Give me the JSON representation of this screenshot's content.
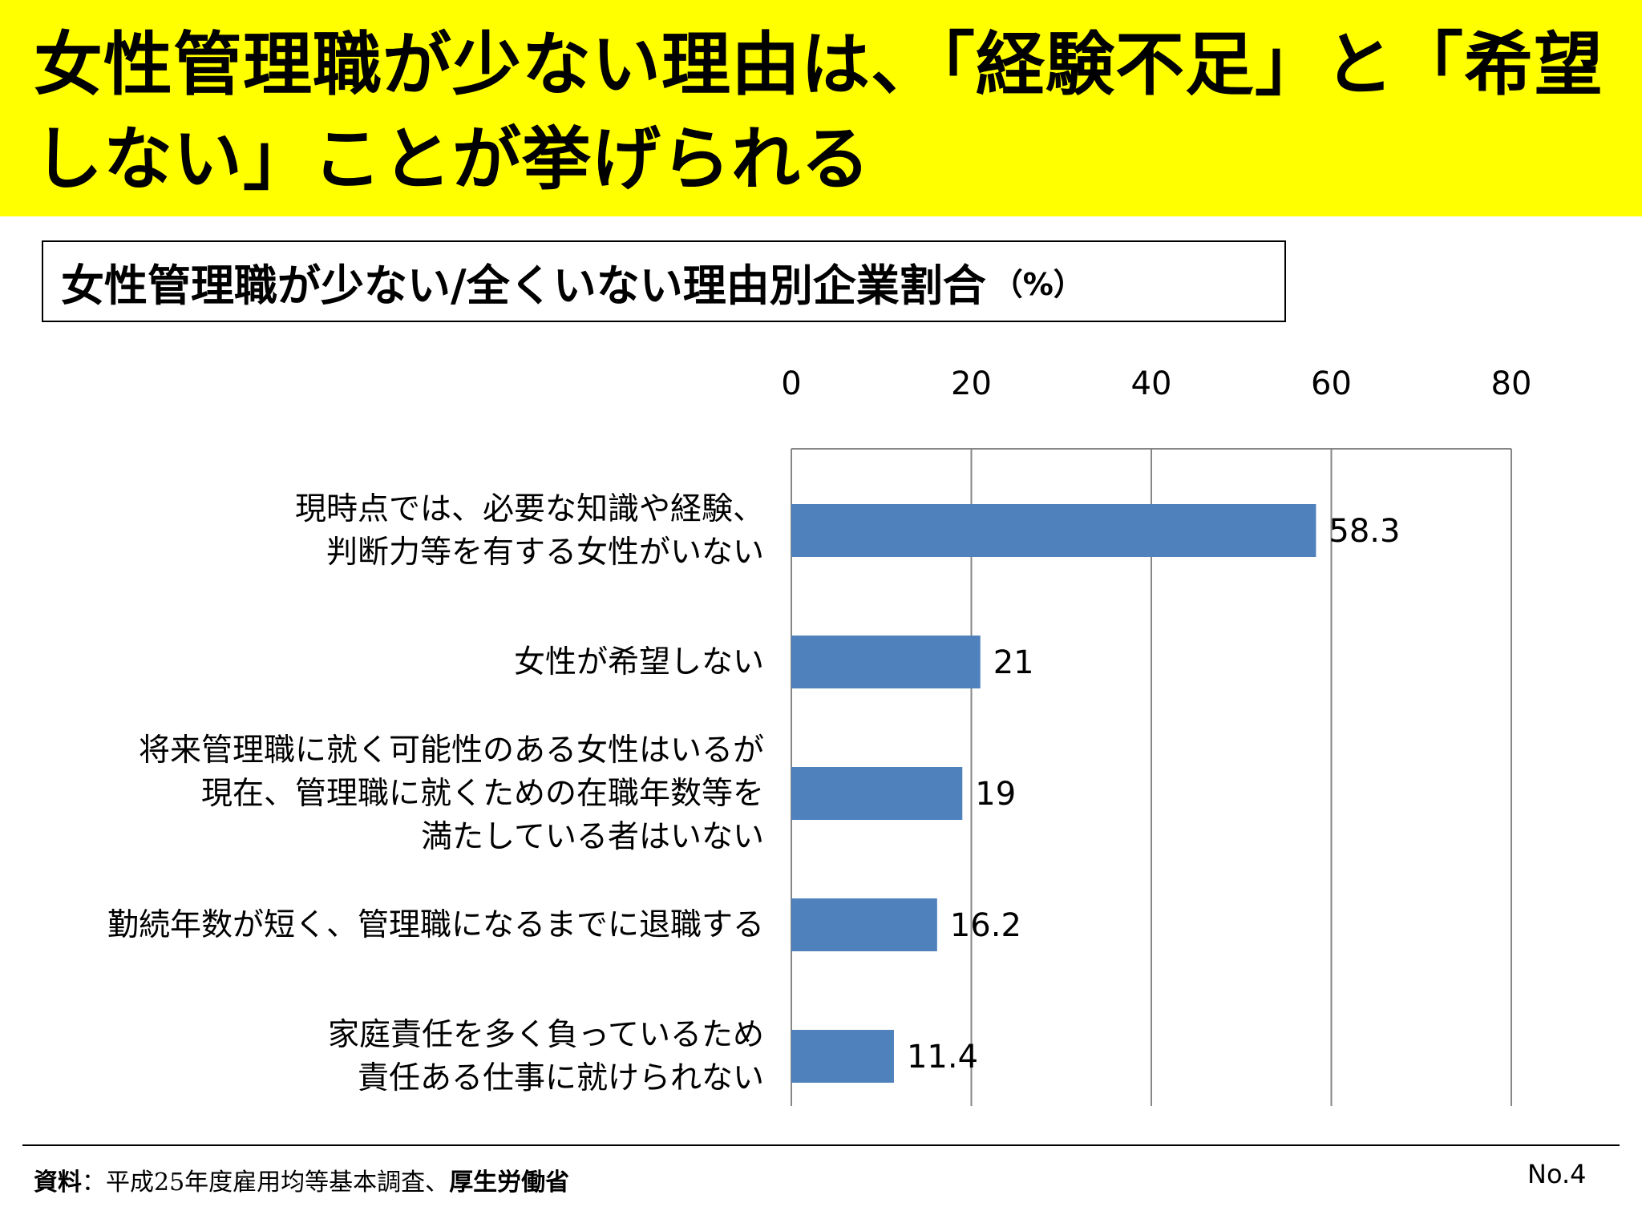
{
  "slide": {
    "title": "女性管理職が少ない理由は、「経験不足」と「希望しない」ことが挙げられる",
    "subtitle": "女性管理職が少ない/全くいない理由別企業割合",
    "subtitle_unit": "（%）",
    "accent_color": "#ffff00",
    "source_label": "資料",
    "source_sep": "：",
    "source_text": "平成25年度雇用均等基本調査、",
    "source_publisher": "厚生労働省",
    "page_number": "No.4"
  },
  "chart_data": {
    "type": "bar",
    "orientation": "horizontal",
    "categories": [
      [
        "現時点では、必要な知識や経験、",
        "判断力等を有する女性がいない"
      ],
      [
        "女性が希望しない"
      ],
      [
        "将来管理職に就く可能性のある女性はいるが",
        "現在、管理職に就くための在職年数等を",
        "満たしている者はいない"
      ],
      [
        "勤続年数が短く、管理職になるまでに退職する"
      ],
      [
        "家庭責任を多く負っているため",
        "責任ある仕事に就けられない"
      ]
    ],
    "values": [
      58.3,
      21,
      19,
      16.2,
      11.4
    ],
    "value_labels": [
      "58.3",
      "21",
      "19",
      "16.2",
      "11.4"
    ],
    "xlim": [
      0,
      80
    ],
    "x_ticks": [
      0,
      20,
      40,
      60,
      80
    ],
    "x_axis_position": "top",
    "grid": true,
    "bar_color": "#4f81bd",
    "grid_color": "#868686"
  }
}
